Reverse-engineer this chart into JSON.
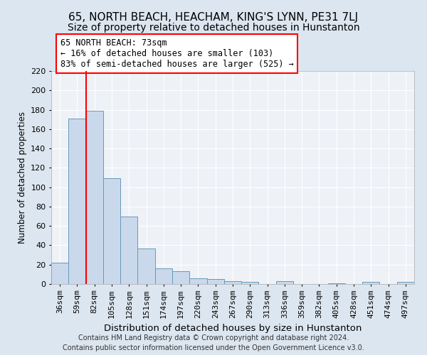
{
  "title": "65, NORTH BEACH, HEACHAM, KING'S LYNN, PE31 7LJ",
  "subtitle": "Size of property relative to detached houses in Hunstanton",
  "xlabel": "Distribution of detached houses by size in Hunstanton",
  "ylabel": "Number of detached properties",
  "footer_line1": "Contains HM Land Registry data © Crown copyright and database right 2024.",
  "footer_line2": "Contains public sector information licensed under the Open Government Licence v3.0.",
  "bar_labels": [
    "36sqm",
    "59sqm",
    "82sqm",
    "105sqm",
    "128sqm",
    "151sqm",
    "174sqm",
    "197sqm",
    "220sqm",
    "243sqm",
    "267sqm",
    "290sqm",
    "313sqm",
    "336sqm",
    "359sqm",
    "382sqm",
    "405sqm",
    "428sqm",
    "451sqm",
    "474sqm",
    "497sqm"
  ],
  "bar_values": [
    22,
    171,
    179,
    109,
    70,
    37,
    16,
    13,
    6,
    5,
    3,
    2,
    0,
    3,
    0,
    0,
    1,
    0,
    2,
    0,
    2
  ],
  "bar_color": "#c9d9eb",
  "bar_edge_color": "#6699bb",
  "annotation_line1": "65 NORTH BEACH: 73sqm",
  "annotation_line2": "← 16% of detached houses are smaller (103)",
  "annotation_line3": "83% of semi-detached houses are larger (525) →",
  "annotation_box_color": "white",
  "annotation_box_edge_color": "red",
  "redline_x": 1.5,
  "redline_color": "red",
  "ylim": [
    0,
    220
  ],
  "yticks": [
    0,
    20,
    40,
    60,
    80,
    100,
    120,
    140,
    160,
    180,
    200,
    220
  ],
  "bg_color": "#dce6f0",
  "plot_bg_color": "#eef2f7",
  "title_fontsize": 11,
  "subtitle_fontsize": 10,
  "xlabel_fontsize": 9.5,
  "ylabel_fontsize": 8.5,
  "tick_fontsize": 8,
  "annotation_fontsize": 8.5,
  "footer_fontsize": 7
}
